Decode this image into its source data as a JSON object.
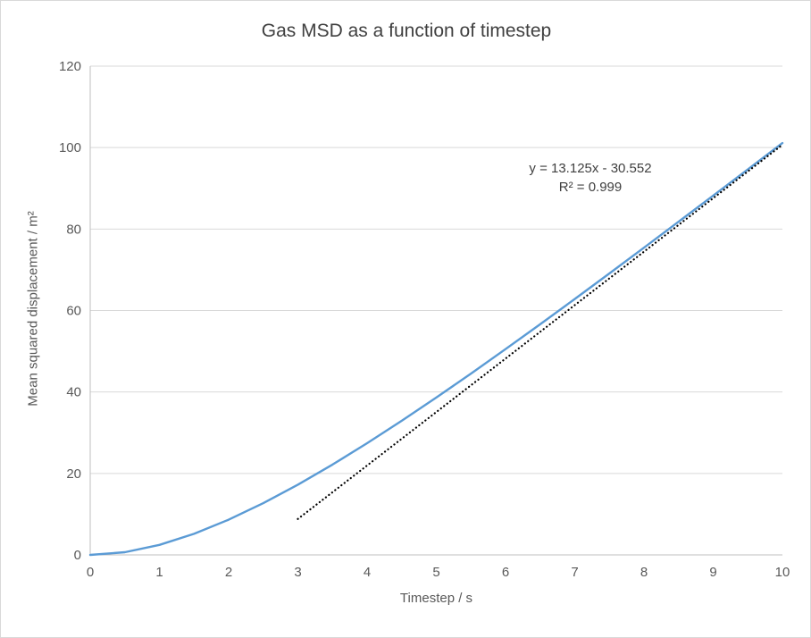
{
  "colors": {
    "series": "#5B9BD5",
    "trendline": "#000000",
    "gridline": "#D9D9D9",
    "axis_line": "#BFBFBF",
    "tick_text": "#595959",
    "title_text": "#404040",
    "background": "#FFFFFF",
    "frame_border": "#D9D9D9"
  },
  "chart_data": {
    "type": "line",
    "title": "Gas MSD as a function of timestep",
    "xlabel": "Timestep / s",
    "ylabel": "Mean squared displacement / m²",
    "xlim": [
      0,
      10
    ],
    "ylim": [
      0,
      120
    ],
    "xticks": [
      0,
      1,
      2,
      3,
      4,
      5,
      6,
      7,
      8,
      9,
      10
    ],
    "yticks": [
      0,
      20,
      40,
      60,
      80,
      100,
      120
    ],
    "grid": "horizontal",
    "legend": "none",
    "series": [
      {
        "name": "Gas MSD",
        "style": "solid-line",
        "x": [
          0,
          0.5,
          1,
          1.5,
          2,
          2.5,
          3,
          3.5,
          4,
          4.5,
          5,
          5.5,
          6,
          6.5,
          7,
          7.5,
          8,
          8.5,
          9,
          9.5,
          10
        ],
        "y": [
          0,
          0.65,
          2.46,
          5.18,
          8.64,
          12.7,
          17.24,
          22.18,
          27.43,
          32.93,
          38.64,
          44.51,
          50.52,
          56.63,
          62.83,
          69.1,
          75.43,
          81.8,
          88.21,
          94.65,
          101.11
        ]
      },
      {
        "name": "Linear trendline",
        "style": "dotted-line",
        "x_start": 3,
        "x_end": 10,
        "slope": 13.125,
        "intercept": -30.552,
        "equation": "y = 13.125x - 30.552",
        "r_squared": "R² = 0.999"
      }
    ]
  }
}
